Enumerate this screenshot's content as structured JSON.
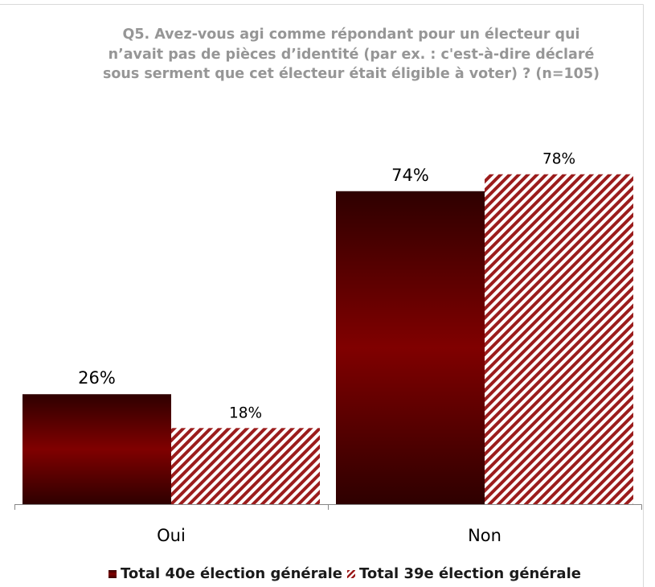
{
  "chart_data": {
    "type": "bar",
    "title": "Q5. Avez-vous agi comme répondant pour un électeur qui\nn’avait pas de pièces d’identité (par ex. : c'est-à-dire déclaré\nsous serment que cet électeur était éligible à voter) ? (n=105)",
    "categories": [
      "Oui",
      "Non"
    ],
    "series": [
      {
        "name": "Total 40e élection générale",
        "values": [
          26,
          74
        ],
        "labels": [
          "26%",
          "74%"
        ],
        "color": "#800000"
      },
      {
        "name": "Total 39e élection générale",
        "values": [
          18,
          78
        ],
        "labels": [
          "18%",
          "78%"
        ],
        "color": "#9b1c1c"
      }
    ],
    "ylim": [
      0,
      100
    ],
    "grid": false,
    "legend": "bottom"
  }
}
